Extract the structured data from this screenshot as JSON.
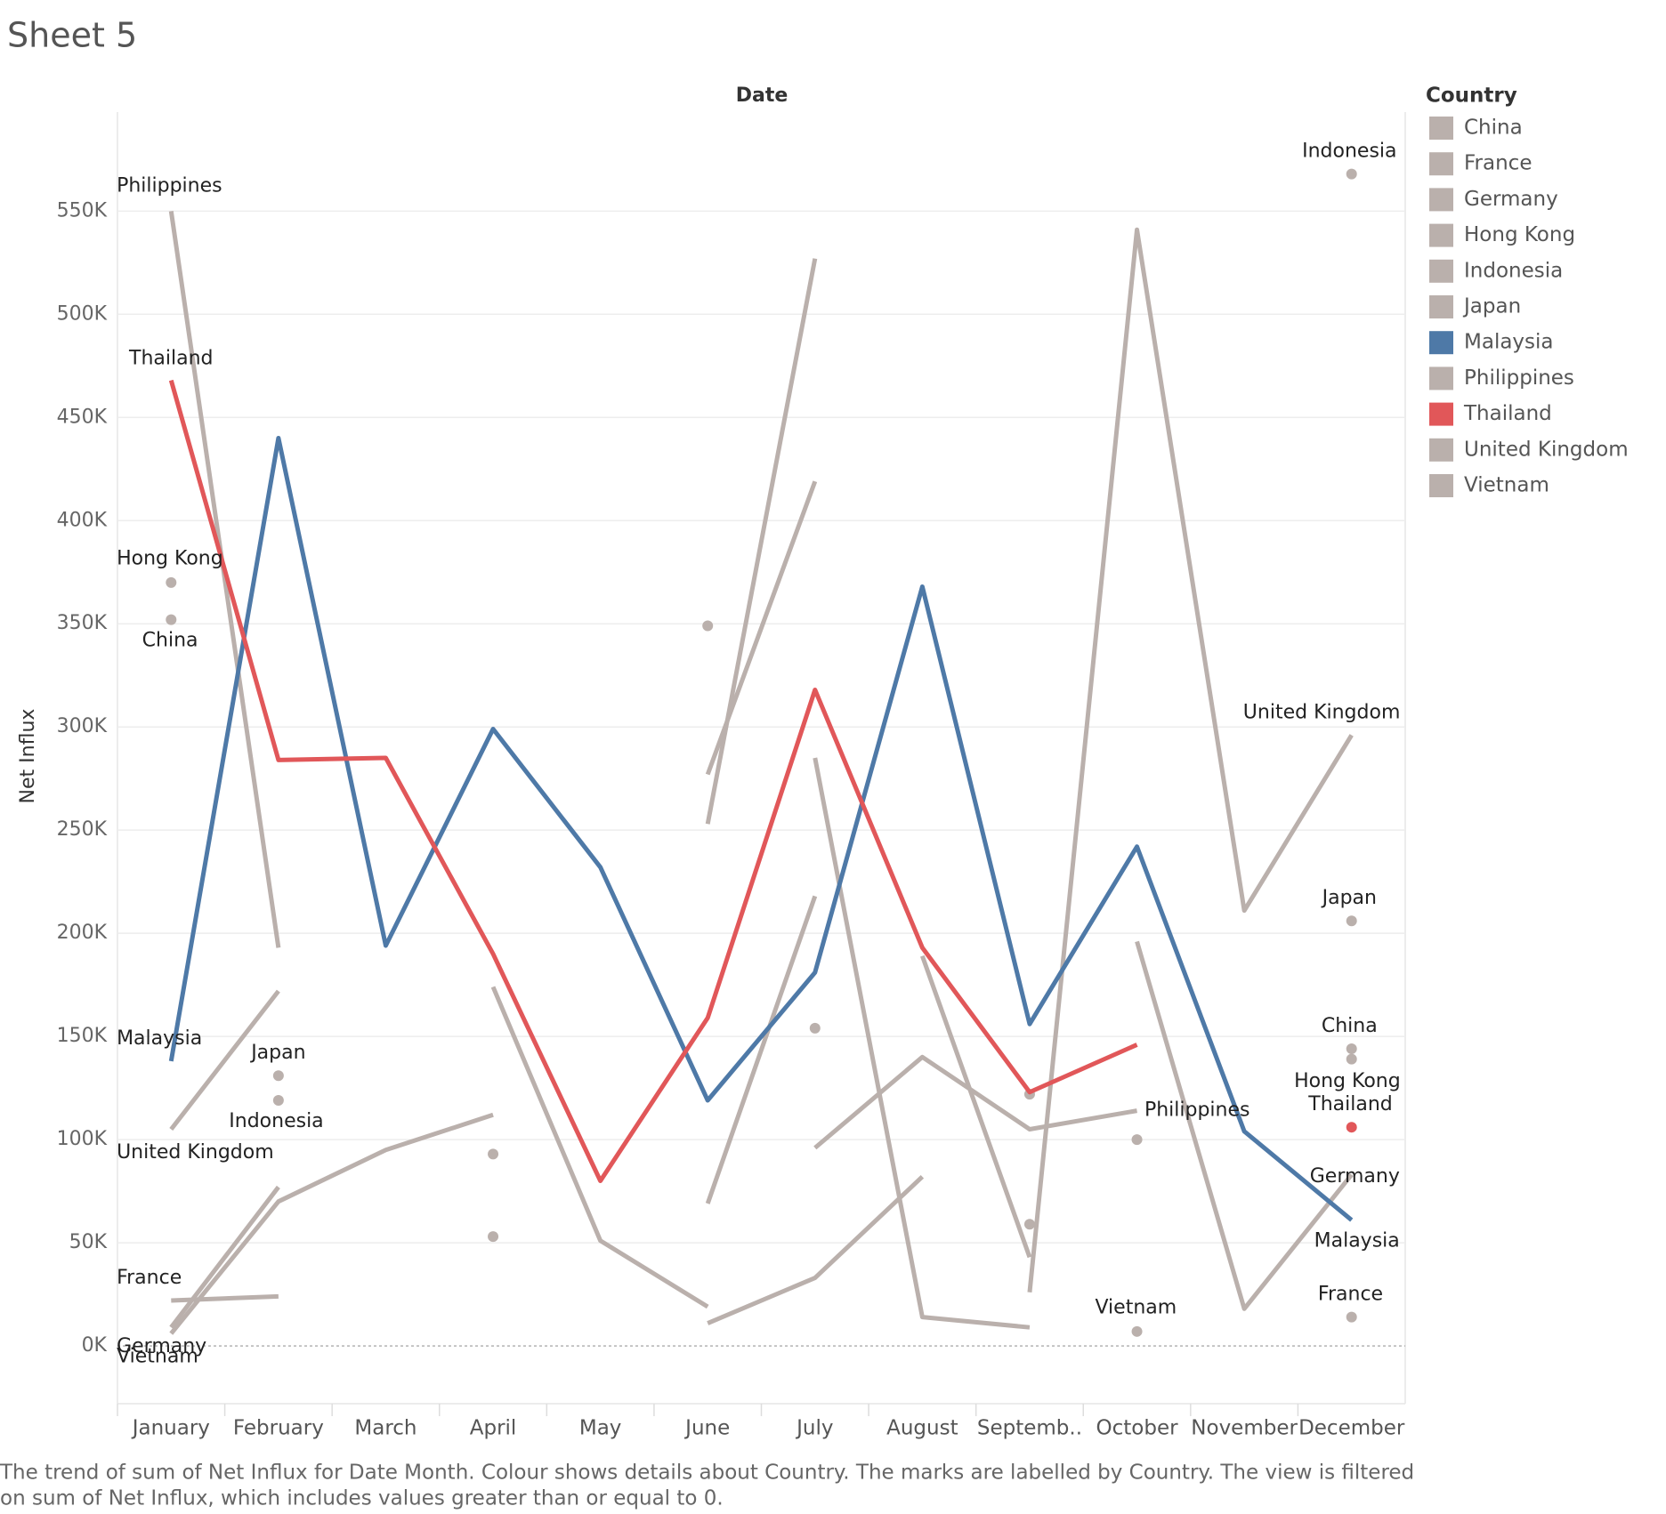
{
  "chart_data": {
    "type": "line",
    "title": "Sheet 5",
    "header": "Date",
    "y_label": "Net Influx",
    "legend_title": "Country",
    "caption": [
      "The trend of sum of Net Influx for Date Month.  Colour shows details about Country.  The marks are labelled by Country. The view is filtered",
      "on sum of Net Influx, which includes values greater than or equal to 0."
    ],
    "categories": [
      "January",
      "February",
      "March",
      "April",
      "May",
      "June",
      "July",
      "August",
      "Septemb..",
      "October",
      "November",
      "December"
    ],
    "ylim": [
      -28000,
      598000
    ],
    "yticks": [
      {
        "value": 0,
        "label": "0K"
      },
      {
        "value": 50000,
        "label": "50K"
      },
      {
        "value": 100000,
        "label": "100K"
      },
      {
        "value": 150000,
        "label": "150K"
      },
      {
        "value": 200000,
        "label": "200K"
      },
      {
        "value": 250000,
        "label": "250K"
      },
      {
        "value": 300000,
        "label": "300K"
      },
      {
        "value": 350000,
        "label": "350K"
      },
      {
        "value": 400000,
        "label": "400K"
      },
      {
        "value": 450000,
        "label": "450K"
      },
      {
        "value": 500000,
        "label": "500K"
      },
      {
        "value": 550000,
        "label": "550K"
      }
    ],
    "grid": true,
    "legend_position": "right",
    "series": [
      {
        "name": "China",
        "color": "#bab0ac",
        "values": [
          352000,
          null,
          null,
          null,
          null,
          69000,
          218000,
          null,
          122000,
          null,
          null,
          144000
        ]
      },
      {
        "name": "France",
        "color": "#bab0ac",
        "values": [
          22000,
          24000,
          null,
          null,
          null,
          null,
          285000,
          14000,
          9000,
          null,
          null,
          14000
        ]
      },
      {
        "name": "Germany",
        "color": "#bab0ac",
        "values": [
          9000,
          77000,
          null,
          null,
          null,
          349000,
          null,
          null,
          null,
          196000,
          18000,
          83000
        ]
      },
      {
        "name": "Hong Kong",
        "color": "#bab0ac",
        "values": [
          370000,
          null,
          null,
          null,
          null,
          277000,
          419000,
          null,
          59000,
          null,
          null,
          139000
        ]
      },
      {
        "name": "Indonesia",
        "color": "#bab0ac",
        "values": [
          null,
          119000,
          null,
          174000,
          51000,
          19000,
          null,
          189000,
          43000,
          null,
          null,
          568000
        ]
      },
      {
        "name": "Japan",
        "color": "#bab0ac",
        "values": [
          null,
          131000,
          null,
          null,
          null,
          253000,
          527000,
          null,
          null,
          100000,
          null,
          206000
        ]
      },
      {
        "name": "Malaysia",
        "color": "#4e79a7",
        "values": [
          138000,
          440000,
          194000,
          299000,
          232000,
          119000,
          181000,
          368000,
          156000,
          242000,
          104000,
          61000
        ]
      },
      {
        "name": "Philippines",
        "color": "#bab0ac",
        "values": [
          550000,
          193000,
          null,
          93000,
          null,
          null,
          96000,
          140000,
          105000,
          114000,
          null,
          null
        ]
      },
      {
        "name": "Thailand",
        "color": "#e15759",
        "values": [
          468000,
          284000,
          285000,
          190000,
          80000,
          159000,
          318000,
          193000,
          123000,
          146000,
          null,
          106000
        ]
      },
      {
        "name": "United Kingdom",
        "color": "#bab0ac",
        "values": [
          105000,
          172000,
          null,
          53000,
          null,
          null,
          154000,
          null,
          26000,
          541000,
          211000,
          296000
        ]
      },
      {
        "name": "Vietnam",
        "color": "#bab0ac",
        "values": [
          6000,
          70000,
          95000,
          112000,
          null,
          11000,
          33000,
          82000,
          null,
          7000,
          null,
          null
        ]
      }
    ]
  }
}
